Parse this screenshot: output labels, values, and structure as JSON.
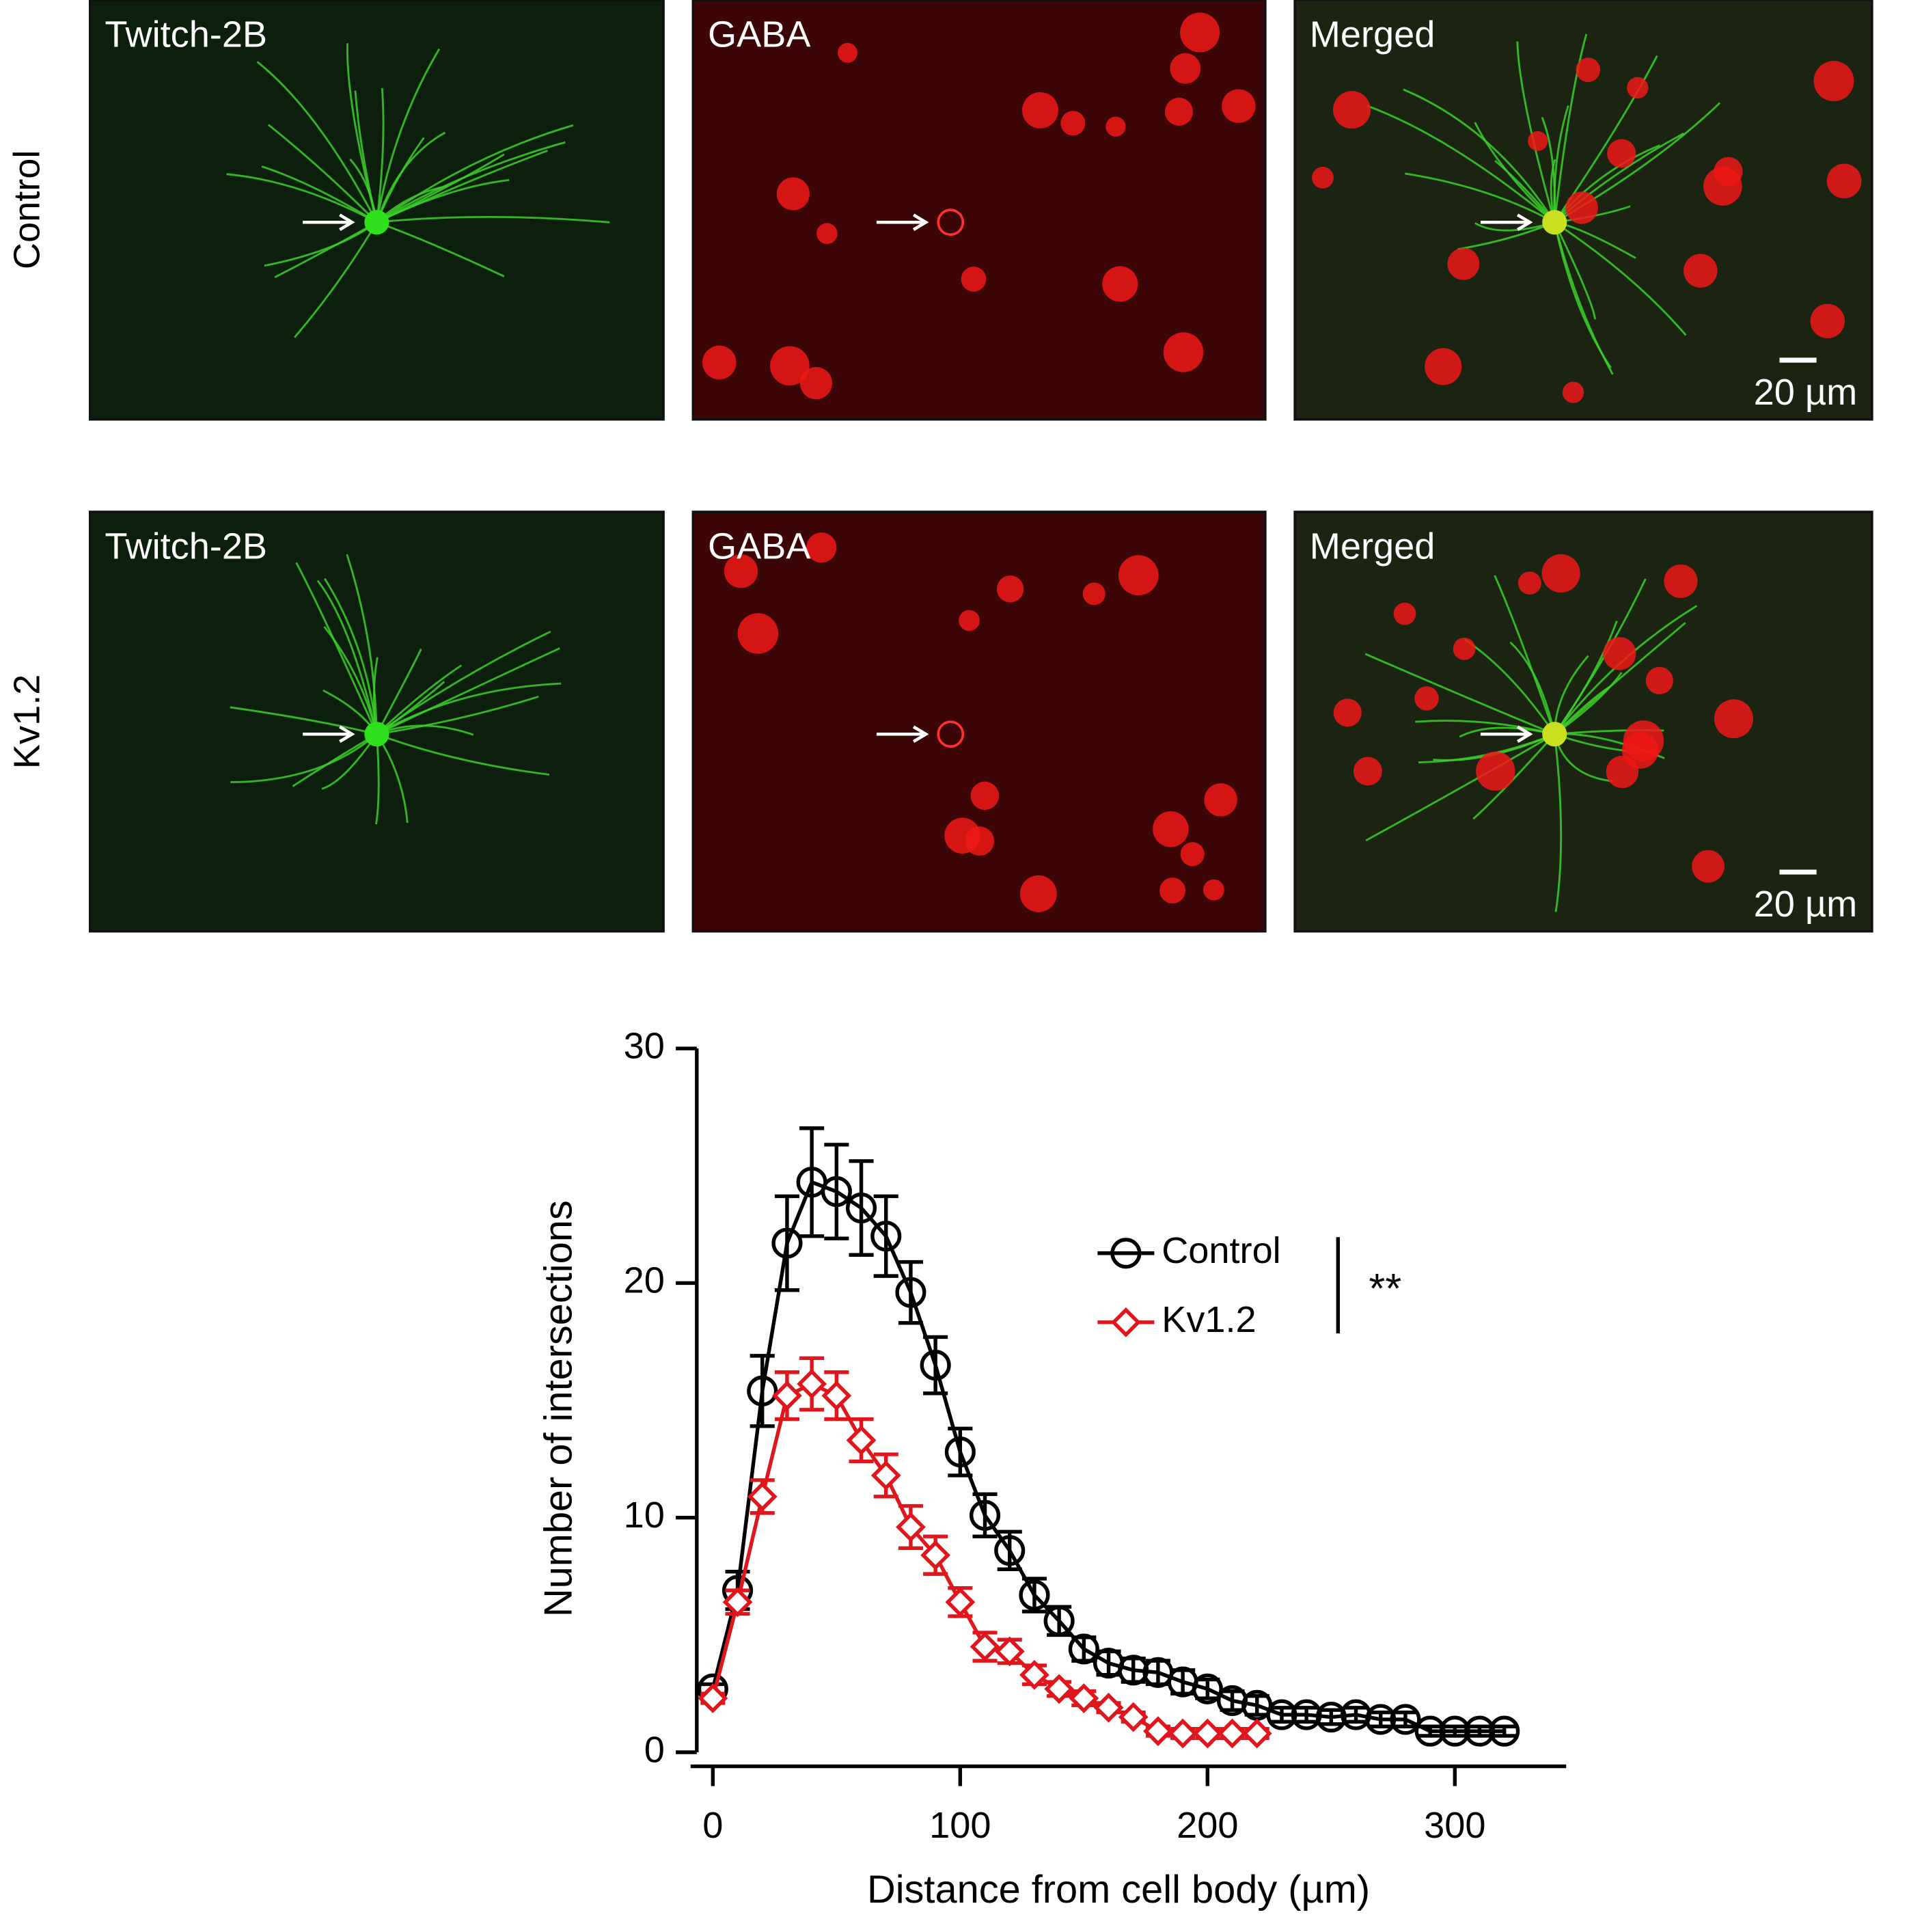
{
  "figure": {
    "rows": [
      {
        "label": "Control",
        "panels": [
          "Twitch-2B",
          "GABA",
          "Merged"
        ],
        "scale_bar": "20 µm"
      },
      {
        "label": "Kv1.2",
        "panels": [
          "Twitch-2B",
          "GABA",
          "Merged"
        ],
        "scale_bar": "20 µm"
      }
    ]
  },
  "chart_data": {
    "type": "line",
    "x_label": "Distance from cell body (µm)",
    "y_label": "Number of intersections",
    "xlim": [
      -9,
      345
    ],
    "ylim": [
      -0.6,
      30
    ],
    "xticks": [
      0,
      100,
      200,
      300
    ],
    "yticks": [
      0,
      10,
      20,
      30
    ],
    "annotation": "**",
    "series": [
      {
        "name": "Control",
        "color": "#000000",
        "marker": "circle",
        "x": [
          0,
          10,
          20,
          30,
          40,
          50,
          60,
          70,
          80,
          90,
          100,
          110,
          120,
          130,
          140,
          150,
          160,
          170,
          180,
          190,
          200,
          210,
          220,
          230,
          240,
          250,
          260,
          270,
          280,
          290,
          300,
          310,
          320
        ],
        "values": [
          2.7,
          6.9,
          15.4,
          21.7,
          24.3,
          23.9,
          23.2,
          22.0,
          19.6,
          16.5,
          12.8,
          10.1,
          8.6,
          6.7,
          5.6,
          4.4,
          3.8,
          3.5,
          3.4,
          3.0,
          2.7,
          2.2,
          2.0,
          1.6,
          1.6,
          1.5,
          1.6,
          1.4,
          1.4,
          0.9,
          0.9,
          0.9,
          0.9
        ],
        "error": [
          0.2,
          0.8,
          1.5,
          2.0,
          2.3,
          2.0,
          2.0,
          1.7,
          1.3,
          1.2,
          1.0,
          0.9,
          0.8,
          0.7,
          0.6,
          0.5,
          0.5,
          0.5,
          0.5,
          0.5,
          0.4,
          0.4,
          0.4,
          0.3,
          0.3,
          0.3,
          0.3,
          0.3,
          0.3,
          0.2,
          0.2,
          0.2,
          0.2
        ]
      },
      {
        "name": "Kv1.2",
        "color": "#e0161d",
        "marker": "diamond",
        "x": [
          0,
          10,
          20,
          30,
          40,
          50,
          60,
          70,
          80,
          90,
          100,
          110,
          120,
          130,
          140,
          150,
          160,
          170,
          180,
          190,
          200,
          210,
          220
        ],
        "values": [
          2.3,
          6.4,
          10.9,
          15.2,
          15.7,
          15.2,
          13.3,
          11.8,
          9.6,
          8.4,
          6.4,
          4.5,
          4.3,
          3.3,
          2.7,
          2.3,
          1.9,
          1.5,
          0.9,
          0.8,
          0.8,
          0.8,
          0.8
        ],
        "error": [
          0.2,
          0.5,
          0.7,
          1.0,
          1.1,
          1.0,
          0.9,
          0.9,
          0.9,
          0.8,
          0.6,
          0.6,
          0.5,
          0.4,
          0.3,
          0.3,
          0.2,
          0.2,
          0.2,
          0.2,
          0.2,
          0.2,
          0.2
        ]
      }
    ]
  }
}
